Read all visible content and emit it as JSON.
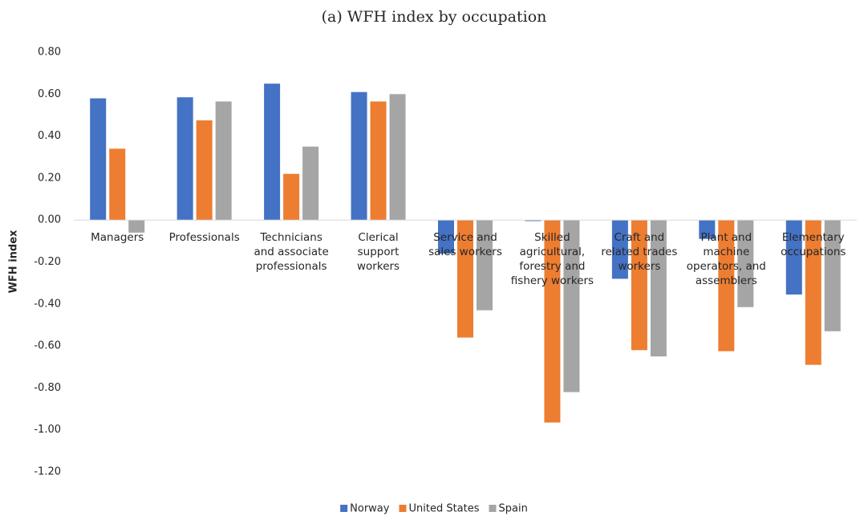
{
  "chart_data": {
    "type": "bar",
    "title": "(a)   WFH index by occupation",
    "y_label": "WFH index",
    "categories": [
      "Managers",
      "Professionals",
      "Technicians and associate professionals",
      "Clerical support workers",
      "Service and sales workers",
      "Skilled agricultural, forestry and fishery workers",
      "Craft and related trades workers",
      "Plant and machine operators, and assemblers",
      "Elementary occupations"
    ],
    "series": [
      {
        "name": "Norway",
        "color": "#4472c4",
        "values": [
          0.58,
          0.585,
          0.65,
          0.61,
          -0.16,
          -0.005,
          -0.28,
          -0.09,
          -0.355
        ]
      },
      {
        "name": "United States",
        "color": "#ed7d31",
        "values": [
          0.34,
          0.475,
          0.22,
          0.565,
          -0.56,
          -0.965,
          -0.62,
          -0.625,
          -0.69
        ]
      },
      {
        "name": "Spain",
        "color": "#a5a5a5",
        "values": [
          -0.06,
          0.565,
          0.35,
          0.6,
          -0.43,
          -0.82,
          -0.65,
          -0.415,
          -0.53
        ]
      }
    ],
    "ylim": [
      -1.2,
      0.8
    ],
    "yticks": [
      {
        "value": 0.8,
        "label": "0.80"
      },
      {
        "value": 0.6,
        "label": "0.60"
      },
      {
        "value": 0.4,
        "label": "0.40"
      },
      {
        "value": 0.2,
        "label": "0.20"
      },
      {
        "value": 0,
        "label": "0.00"
      },
      {
        "value": -0.2,
        "label": "-0.20"
      },
      {
        "value": -0.4,
        "label": "-0.40"
      },
      {
        "value": -0.6,
        "label": "-0.60"
      },
      {
        "value": -0.8,
        "label": "-0.80"
      },
      {
        "value": -1,
        "label": "-1.00"
      },
      {
        "value": -1.2,
        "label": "-1.20"
      }
    ],
    "grid": false,
    "legend": "bottom"
  }
}
